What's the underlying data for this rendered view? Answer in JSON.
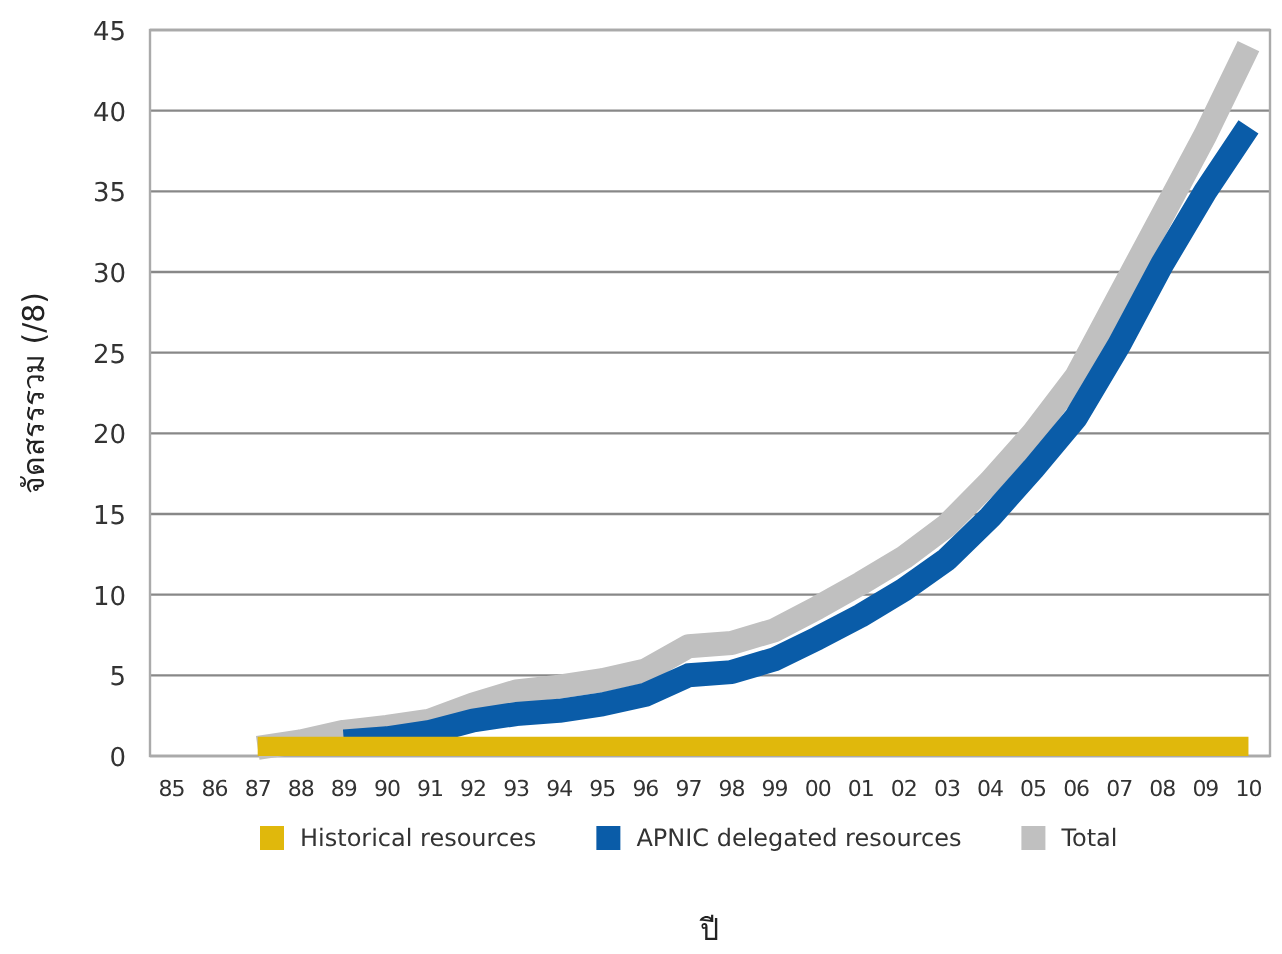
{
  "chart_data": {
    "type": "line",
    "xlabel": "ปี",
    "ylabel": "จัดสรรรวม (/8)",
    "categories": [
      "85",
      "86",
      "87",
      "88",
      "89",
      "90",
      "91",
      "92",
      "93",
      "94",
      "95",
      "96",
      "97",
      "98",
      "99",
      "00",
      "01",
      "02",
      "03",
      "04",
      "05",
      "06",
      "07",
      "08",
      "09",
      "10"
    ],
    "series": [
      {
        "name": "Total",
        "color": "#c0c0c0",
        "values": [
          null,
          null,
          0.5,
          0.9,
          1.5,
          1.8,
          2.2,
          3.2,
          4.0,
          4.3,
          4.7,
          5.3,
          6.8,
          7.0,
          7.8,
          9.2,
          10.7,
          12.3,
          14.3,
          17.0,
          20.0,
          23.5,
          28.5,
          33.5,
          38.5,
          44.0
        ]
      },
      {
        "name": "APNIC delegated resources",
        "color": "#0a5ca8",
        "values": [
          null,
          null,
          null,
          null,
          0.9,
          1.1,
          1.5,
          2.2,
          2.6,
          2.8,
          3.2,
          3.8,
          5.0,
          5.2,
          6.0,
          7.3,
          8.7,
          10.3,
          12.2,
          14.8,
          17.8,
          21.0,
          25.5,
          30.5,
          35.0,
          39.0
        ]
      },
      {
        "name": "Historical resources",
        "type": "area",
        "color": "#e0b80c",
        "values": [
          null,
          null,
          1.2,
          1.2,
          1.2,
          1.2,
          1.2,
          1.2,
          1.2,
          1.2,
          1.2,
          1.2,
          1.2,
          1.2,
          1.2,
          1.2,
          1.2,
          1.2,
          1.2,
          1.2,
          1.2,
          1.2,
          1.2,
          1.2,
          1.2,
          1.2
        ]
      }
    ],
    "ylim": [
      0,
      45
    ],
    "yticks": [
      0,
      5,
      10,
      15,
      20,
      25,
      30,
      35,
      40,
      45
    ],
    "grid": "y",
    "legend": "bottom"
  }
}
